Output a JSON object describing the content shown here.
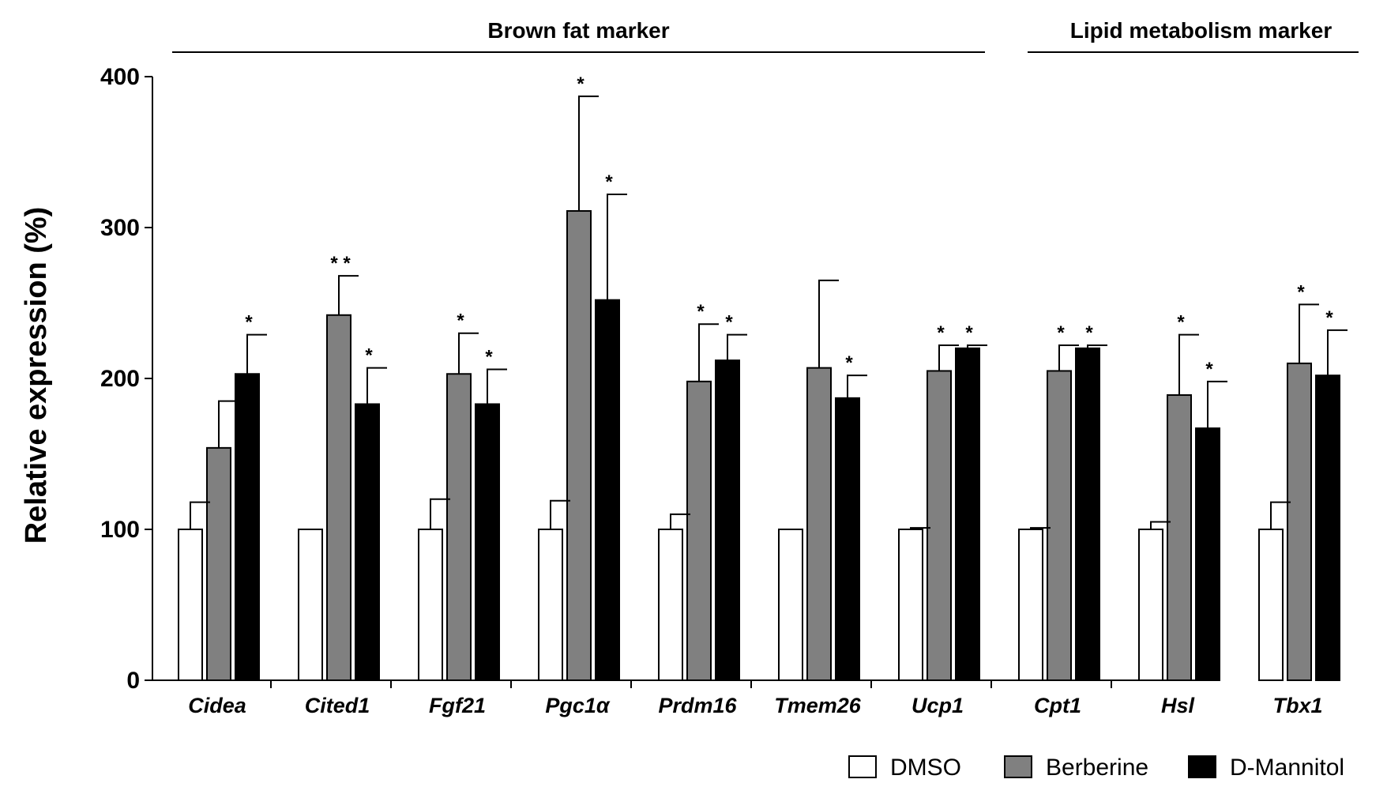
{
  "chart_data": {
    "type": "bar",
    "title": "",
    "xlabel": "",
    "ylabel": "Relative expression (%)",
    "ylim": [
      0,
      400
    ],
    "yticks": [
      0,
      100,
      200,
      300,
      400
    ],
    "grid": false,
    "legend_position": "bottom-right",
    "categories": [
      "Cidea",
      "Cited1",
      "Fgf21",
      "Pgc1α",
      "Prdm16",
      "Tmem26",
      "Ucp1",
      "Cpt1",
      "Hsl",
      "Tbx1"
    ],
    "groups": [
      {
        "label": "Brown fat marker",
        "categories": [
          "Cidea",
          "Cited1",
          "Fgf21",
          "Pgc1α",
          "Prdm16",
          "Tmem26",
          "Ucp1"
        ]
      },
      {
        "label": "Lipid metabolism marker",
        "categories": [
          "Cpt1",
          "Hsl",
          "Tbx1"
        ]
      }
    ],
    "series": [
      {
        "name": "DMSO",
        "color": "#ffffff",
        "values": [
          100,
          100,
          100,
          100,
          100,
          100,
          100,
          100,
          100,
          100
        ],
        "errors": [
          18,
          0,
          20,
          19,
          10,
          0,
          1,
          1,
          5,
          18
        ],
        "significance": [
          "",
          "",
          "",
          "",
          "",
          "",
          "",
          "",
          "",
          ""
        ]
      },
      {
        "name": "Berberine",
        "color": "#808080",
        "values": [
          154,
          242,
          203,
          311,
          198,
          207,
          205,
          205,
          189,
          210
        ],
        "errors": [
          31,
          26,
          27,
          76,
          38,
          58,
          17,
          17,
          40,
          39
        ],
        "significance": [
          "",
          "* *",
          "*",
          "*",
          "*",
          "",
          "*",
          "*",
          "*",
          "*"
        ]
      },
      {
        "name": "D-Mannitol",
        "color": "#000000",
        "values": [
          203,
          183,
          183,
          252,
          212,
          187,
          220,
          220,
          167,
          202
        ],
        "errors": [
          26,
          24,
          23,
          70,
          17,
          15,
          2,
          2,
          31,
          30
        ],
        "significance": [
          "*",
          "*",
          "*",
          "*",
          "*",
          "*",
          "*",
          "*",
          "*",
          "*"
        ]
      }
    ]
  }
}
